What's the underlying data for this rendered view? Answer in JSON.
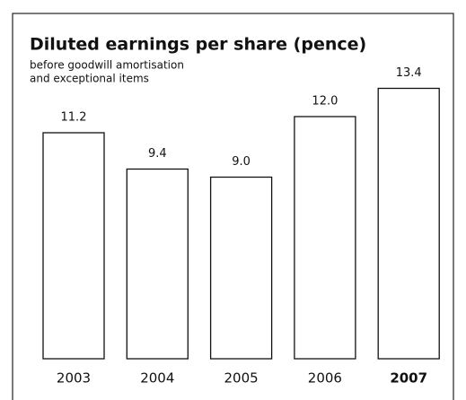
{
  "chart_data": {
    "type": "bar",
    "title": "Diluted earnings per share (pence)",
    "subtitle": [
      "before goodwill amortisation",
      "and exceptional items"
    ],
    "categories": [
      "2003",
      "2004",
      "2005",
      "2006",
      "2007"
    ],
    "values": [
      11.2,
      9.4,
      9.0,
      12.0,
      13.4
    ],
    "value_labels": [
      "11.2",
      "9.4",
      "9.0",
      "12.0",
      "13.4"
    ],
    "color": "#ffffff"
  }
}
